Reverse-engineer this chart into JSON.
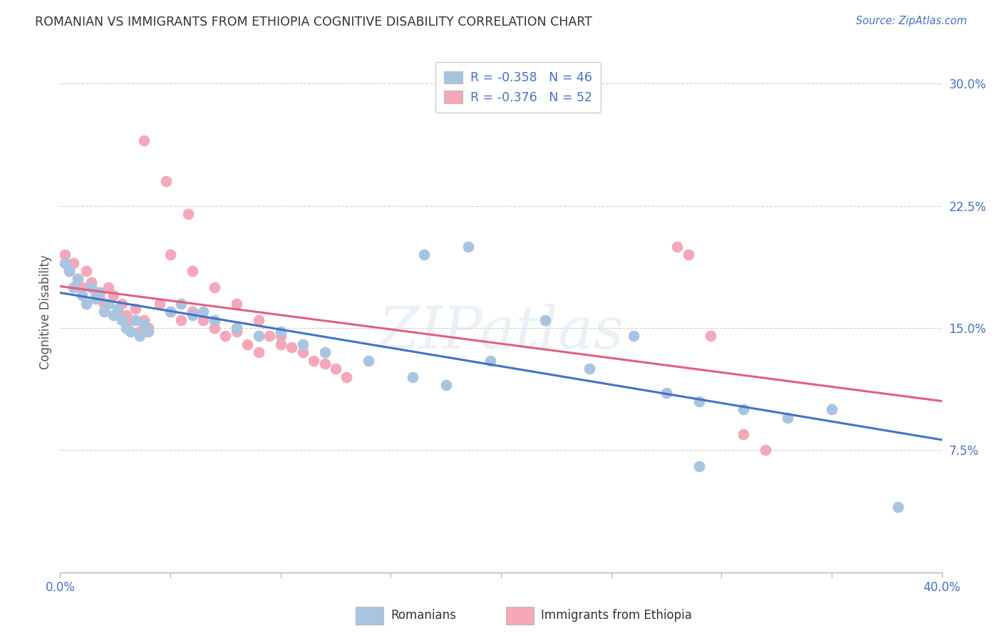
{
  "title": "ROMANIAN VS IMMIGRANTS FROM ETHIOPIA COGNITIVE DISABILITY CORRELATION CHART",
  "source": "Source: ZipAtlas.com",
  "ylabel": "Cognitive Disability",
  "xlim": [
    0.0,
    0.4
  ],
  "ylim": [
    0.0,
    0.32
  ],
  "yticks": [
    0.075,
    0.15,
    0.225,
    0.3
  ],
  "ytick_labels": [
    "7.5%",
    "15.0%",
    "22.5%",
    "30.0%"
  ],
  "xticks": [
    0.0,
    0.05,
    0.1,
    0.15,
    0.2,
    0.25,
    0.3,
    0.35,
    0.4
  ],
  "xtick_labels": [
    "0.0%",
    "",
    "",
    "",
    "",
    "",
    "",
    "",
    "40.0%"
  ],
  "grid_color": "#cccccc",
  "background_color": "#ffffff",
  "blue_color": "#a8c4e0",
  "pink_color": "#f4a8b8",
  "line_blue": "#4472c4",
  "line_pink": "#e06080",
  "legend_R_blue": "-0.358",
  "legend_N_blue": "46",
  "legend_R_pink": "-0.376",
  "legend_N_pink": "52",
  "watermark": "ZIPatlas",
  "romanians_x": [
    0.002,
    0.004,
    0.006,
    0.008,
    0.01,
    0.012,
    0.014,
    0.016,
    0.018,
    0.02,
    0.022,
    0.024,
    0.026,
    0.028,
    0.03,
    0.032,
    0.034,
    0.036,
    0.038,
    0.04,
    0.05,
    0.055,
    0.06,
    0.065,
    0.07,
    0.08,
    0.09,
    0.1,
    0.11,
    0.12,
    0.14,
    0.16,
    0.175,
    0.195,
    0.22,
    0.24,
    0.26,
    0.275,
    0.29,
    0.31,
    0.33,
    0.35,
    0.165,
    0.185,
    0.38,
    0.29
  ],
  "romanians_y": [
    0.19,
    0.185,
    0.175,
    0.18,
    0.17,
    0.165,
    0.175,
    0.168,
    0.172,
    0.16,
    0.165,
    0.158,
    0.162,
    0.155,
    0.15,
    0.148,
    0.155,
    0.145,
    0.152,
    0.148,
    0.16,
    0.165,
    0.158,
    0.16,
    0.155,
    0.15,
    0.145,
    0.148,
    0.14,
    0.135,
    0.13,
    0.12,
    0.115,
    0.13,
    0.155,
    0.125,
    0.145,
    0.11,
    0.105,
    0.1,
    0.095,
    0.1,
    0.195,
    0.2,
    0.04,
    0.065
  ],
  "ethiopia_x": [
    0.002,
    0.004,
    0.006,
    0.008,
    0.01,
    0.012,
    0.014,
    0.016,
    0.018,
    0.02,
    0.022,
    0.024,
    0.026,
    0.028,
    0.03,
    0.032,
    0.034,
    0.036,
    0.038,
    0.04,
    0.045,
    0.05,
    0.055,
    0.06,
    0.065,
    0.07,
    0.075,
    0.08,
    0.085,
    0.09,
    0.095,
    0.1,
    0.105,
    0.11,
    0.115,
    0.12,
    0.125,
    0.13,
    0.05,
    0.06,
    0.07,
    0.08,
    0.09,
    0.1,
    0.038,
    0.28,
    0.285,
    0.295,
    0.31,
    0.32,
    0.048,
    0.058
  ],
  "ethiopia_y": [
    0.195,
    0.185,
    0.19,
    0.18,
    0.175,
    0.185,
    0.178,
    0.172,
    0.168,
    0.165,
    0.175,
    0.17,
    0.16,
    0.165,
    0.158,
    0.155,
    0.162,
    0.148,
    0.155,
    0.15,
    0.165,
    0.16,
    0.155,
    0.16,
    0.155,
    0.15,
    0.145,
    0.148,
    0.14,
    0.135,
    0.145,
    0.14,
    0.138,
    0.135,
    0.13,
    0.128,
    0.125,
    0.12,
    0.195,
    0.185,
    0.175,
    0.165,
    0.155,
    0.145,
    0.265,
    0.2,
    0.195,
    0.145,
    0.085,
    0.075,
    0.24,
    0.22
  ]
}
